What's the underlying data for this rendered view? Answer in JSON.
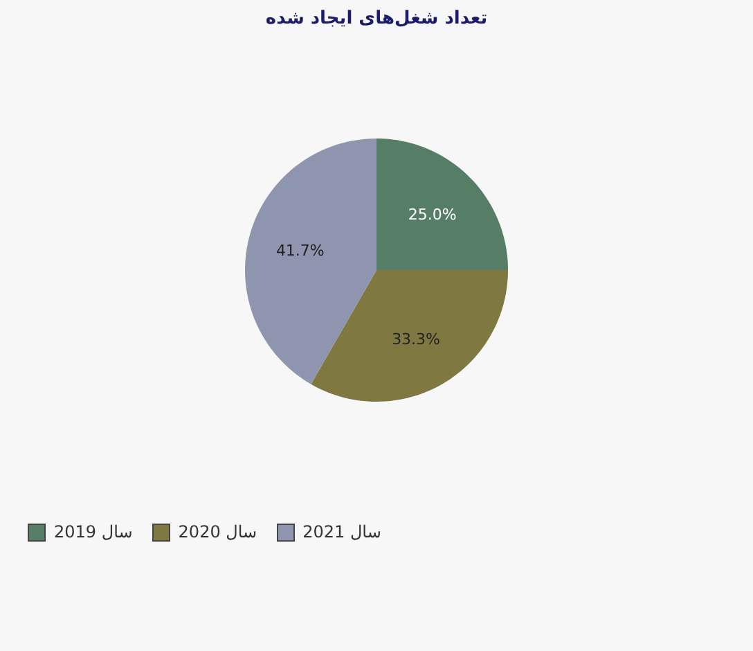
{
  "chart_data": {
    "type": "pie",
    "title": "تعداد شغل‌های ایجاد شده",
    "categories": [
      "سال 2019",
      "سال 2020",
      "سال 2021"
    ],
    "values": [
      25.0,
      33.3,
      41.7
    ],
    "colors": [
      "#567e66",
      "#7f7841",
      "#8f95ae"
    ],
    "value_labels": [
      "25.0%",
      "33.3%",
      "41.7%"
    ],
    "legend": "bottom left"
  }
}
